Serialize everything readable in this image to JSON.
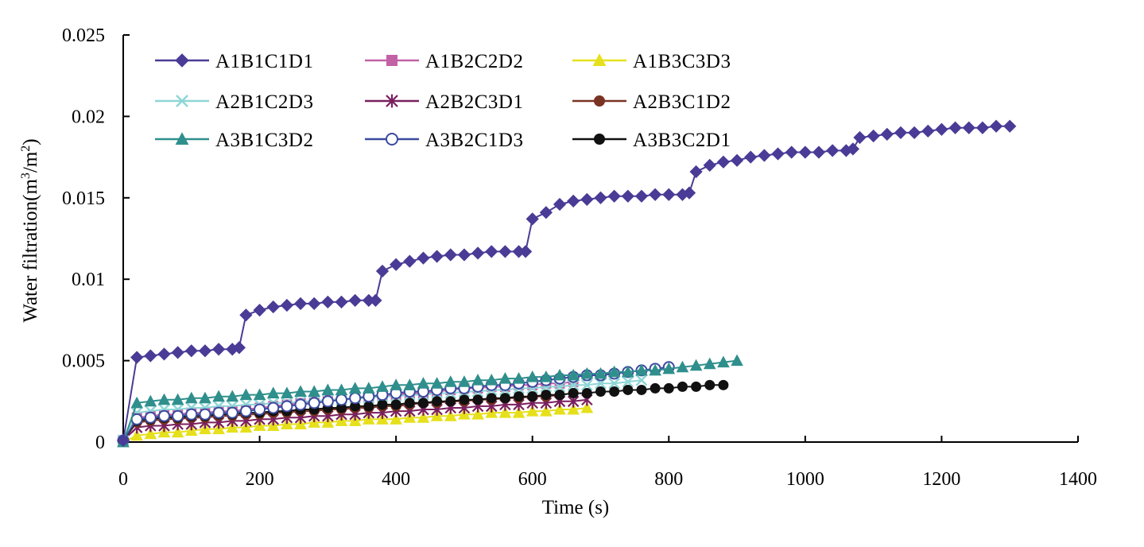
{
  "chart_data": {
    "type": "line",
    "title": "",
    "xlabel": "Time (s)",
    "ylabel_text": "Water filtration(m",
    "ylabel_sup1": "3",
    "ylabel_mid": "/m",
    "ylabel_sup2": "2",
    "ylabel_end": ")",
    "xlim": [
      0,
      1400
    ],
    "ylim": [
      0,
      0.025
    ],
    "xticks": [
      0,
      200,
      400,
      600,
      800,
      1000,
      1200,
      1400
    ],
    "xtick_labels": [
      "0",
      "200",
      "400",
      "600",
      "800",
      "1000",
      "1200",
      "1400"
    ],
    "yticks": [
      0,
      0.005,
      0.01,
      0.015,
      0.02,
      0.025
    ],
    "ytick_labels": [
      "0",
      "0.005",
      "0.01",
      "0.015",
      "0.02",
      "0.025"
    ],
    "grid": false,
    "legend_position": "top-left",
    "series": [
      {
        "name": "A1B1C1D1",
        "color": "#4a3b96",
        "marker": "diamond",
        "x": [
          0,
          20,
          40,
          60,
          80,
          100,
          120,
          140,
          160,
          170,
          180,
          200,
          220,
          240,
          260,
          280,
          300,
          320,
          340,
          360,
          370,
          380,
          400,
          420,
          440,
          460,
          480,
          500,
          520,
          540,
          560,
          580,
          590,
          600,
          620,
          640,
          660,
          680,
          700,
          720,
          740,
          760,
          780,
          800,
          820,
          830,
          840,
          860,
          880,
          900,
          920,
          940,
          960,
          980,
          1000,
          1020,
          1040,
          1060,
          1070,
          1080,
          1100,
          1120,
          1140,
          1160,
          1180,
          1200,
          1220,
          1240,
          1260,
          1280,
          1300
        ],
        "values": [
          0.0001,
          0.0052,
          0.0053,
          0.0054,
          0.0055,
          0.0056,
          0.0056,
          0.0057,
          0.0057,
          0.0058,
          0.0078,
          0.0081,
          0.0083,
          0.0084,
          0.0085,
          0.0085,
          0.0086,
          0.0086,
          0.0087,
          0.0087,
          0.0087,
          0.0105,
          0.0109,
          0.0111,
          0.0113,
          0.0114,
          0.0115,
          0.0115,
          0.0116,
          0.0117,
          0.0117,
          0.0117,
          0.0117,
          0.0137,
          0.0141,
          0.0146,
          0.0148,
          0.0149,
          0.015,
          0.0151,
          0.0151,
          0.0151,
          0.0152,
          0.0152,
          0.0152,
          0.0153,
          0.0166,
          0.017,
          0.0172,
          0.0173,
          0.0175,
          0.0176,
          0.0177,
          0.0178,
          0.0178,
          0.0178,
          0.0179,
          0.0179,
          0.018,
          0.0187,
          0.0188,
          0.0189,
          0.019,
          0.019,
          0.0191,
          0.0192,
          0.0193,
          0.0193,
          0.0193,
          0.0194,
          0.0194
        ]
      },
      {
        "name": "A1B2C2D2",
        "color": "#c261a6",
        "marker": "square",
        "x": [
          0,
          20,
          40,
          60,
          80,
          100,
          120,
          140,
          160,
          180,
          200,
          220,
          240,
          260,
          280,
          300,
          320,
          340,
          360,
          380,
          400,
          420,
          440,
          460,
          480,
          500,
          520,
          540,
          560,
          580,
          600,
          620,
          640,
          660
        ],
        "values": [
          0.0001,
          0.0015,
          0.0016,
          0.0017,
          0.0017,
          0.0018,
          0.0018,
          0.0019,
          0.0019,
          0.002,
          0.0021,
          0.0022,
          0.0023,
          0.0024,
          0.0025,
          0.0026,
          0.0026,
          0.0027,
          0.0028,
          0.0028,
          0.0029,
          0.003,
          0.003,
          0.0031,
          0.0032,
          0.0033,
          0.0033,
          0.0034,
          0.0034,
          0.0035,
          0.0035,
          0.0036,
          0.0036,
          0.0037
        ]
      },
      {
        "name": "A1B3C3D3",
        "color": "#e6e01c",
        "marker": "triangle",
        "x": [
          0,
          20,
          40,
          60,
          80,
          100,
          120,
          140,
          160,
          180,
          200,
          220,
          240,
          260,
          280,
          300,
          320,
          340,
          360,
          380,
          400,
          420,
          440,
          460,
          480,
          500,
          520,
          540,
          560,
          580,
          600,
          620,
          640,
          660,
          680
        ],
        "values": [
          0,
          0.0004,
          0.0005,
          0.0006,
          0.0006,
          0.0007,
          0.0008,
          0.0008,
          0.0009,
          0.0009,
          0.001,
          0.001,
          0.0011,
          0.0011,
          0.0012,
          0.0012,
          0.0013,
          0.0013,
          0.0014,
          0.0014,
          0.0014,
          0.0015,
          0.0015,
          0.0016,
          0.0016,
          0.0017,
          0.0017,
          0.0018,
          0.0018,
          0.0018,
          0.0019,
          0.0019,
          0.002,
          0.002,
          0.0021
        ]
      },
      {
        "name": "A2B1C2D3",
        "color": "#8fd6d6",
        "marker": "x",
        "x": [
          0,
          20,
          40,
          60,
          80,
          100,
          120,
          140,
          160,
          180,
          200,
          220,
          240,
          260,
          280,
          300,
          320,
          340,
          360,
          380,
          400,
          420,
          440,
          460,
          480,
          500,
          520,
          540,
          560,
          580,
          600,
          620,
          640,
          660,
          680,
          700,
          720,
          740,
          760
        ],
        "values": [
          0.0001,
          0.0018,
          0.0019,
          0.002,
          0.002,
          0.0021,
          0.0021,
          0.0022,
          0.0022,
          0.0023,
          0.0023,
          0.0024,
          0.0024,
          0.0025,
          0.0025,
          0.0026,
          0.0026,
          0.0027,
          0.0027,
          0.0028,
          0.0028,
          0.0029,
          0.0029,
          0.003,
          0.003,
          0.0031,
          0.0031,
          0.0032,
          0.0032,
          0.0033,
          0.0033,
          0.0034,
          0.0034,
          0.0035,
          0.0035,
          0.0036,
          0.0036,
          0.0037,
          0.0038
        ]
      },
      {
        "name": "A2B2C3D1",
        "color": "#7a1f5e",
        "marker": "star",
        "x": [
          0,
          20,
          40,
          60,
          80,
          100,
          120,
          140,
          160,
          180,
          200,
          220,
          240,
          260,
          280,
          300,
          320,
          340,
          360,
          380,
          400,
          420,
          440,
          460,
          480,
          500,
          520,
          540,
          560,
          580,
          600,
          620,
          640,
          660,
          680
        ],
        "values": [
          0.0001,
          0.0009,
          0.001,
          0.001,
          0.0011,
          0.0011,
          0.0012,
          0.0012,
          0.0013,
          0.0013,
          0.0014,
          0.0014,
          0.0015,
          0.0015,
          0.0016,
          0.0016,
          0.0017,
          0.0017,
          0.0018,
          0.0018,
          0.0019,
          0.0019,
          0.002,
          0.002,
          0.0021,
          0.0021,
          0.0022,
          0.0022,
          0.0023,
          0.0023,
          0.0024,
          0.0024,
          0.0025,
          0.0025,
          0.0026
        ]
      },
      {
        "name": "A2B3C1D2",
        "color": "#7a3322",
        "marker": "circle",
        "x": [
          0,
          20,
          40,
          60,
          80,
          100,
          120,
          140,
          160,
          180,
          200,
          220,
          240,
          260,
          280,
          300,
          320,
          340,
          360,
          380,
          400,
          420,
          440,
          460,
          480,
          500,
          520,
          540,
          560,
          580,
          600,
          620,
          640,
          660
        ],
        "values": [
          0.0001,
          0.0012,
          0.0013,
          0.0014,
          0.0014,
          0.0015,
          0.0015,
          0.0016,
          0.0016,
          0.0017,
          0.0017,
          0.0018,
          0.0018,
          0.0019,
          0.0019,
          0.002,
          0.002,
          0.0021,
          0.0021,
          0.0022,
          0.0022,
          0.0023,
          0.0024,
          0.0024,
          0.0025,
          0.0025,
          0.0026,
          0.0026,
          0.0027,
          0.0027,
          0.0028,
          0.0028,
          0.0029,
          0.003
        ]
      },
      {
        "name": "A3B1C3D2",
        "color": "#2f8f8c",
        "marker": "triangle",
        "x": [
          0,
          20,
          40,
          60,
          80,
          100,
          120,
          140,
          160,
          180,
          200,
          220,
          240,
          260,
          280,
          300,
          320,
          340,
          360,
          380,
          400,
          420,
          440,
          460,
          480,
          500,
          520,
          540,
          560,
          580,
          600,
          620,
          640,
          660,
          680,
          700,
          720,
          740,
          760,
          780,
          800,
          820,
          840,
          860,
          880,
          900
        ],
        "values": [
          0,
          0.0024,
          0.0025,
          0.0026,
          0.0026,
          0.0027,
          0.0027,
          0.0028,
          0.0028,
          0.0029,
          0.0029,
          0.003,
          0.003,
          0.0031,
          0.0031,
          0.0032,
          0.0032,
          0.0033,
          0.0033,
          0.0034,
          0.0035,
          0.0035,
          0.0036,
          0.0036,
          0.0037,
          0.0037,
          0.0038,
          0.0038,
          0.0039,
          0.0039,
          0.004,
          0.004,
          0.0041,
          0.0041,
          0.0042,
          0.0042,
          0.0043,
          0.0043,
          0.0044,
          0.0044,
          0.0045,
          0.0046,
          0.0047,
          0.0048,
          0.0049,
          0.005
        ]
      },
      {
        "name": "A3B2C1D3",
        "color": "#3b4a9e",
        "marker": "open-circle",
        "x": [
          0,
          20,
          40,
          60,
          80,
          100,
          120,
          140,
          160,
          180,
          200,
          220,
          240,
          260,
          280,
          300,
          320,
          340,
          360,
          380,
          400,
          420,
          440,
          460,
          480,
          500,
          520,
          540,
          560,
          580,
          600,
          620,
          640,
          660,
          680,
          700,
          720,
          740,
          760,
          780,
          800
        ],
        "values": [
          0.0001,
          0.0014,
          0.0015,
          0.0016,
          0.0016,
          0.0017,
          0.0017,
          0.0018,
          0.0018,
          0.0019,
          0.002,
          0.0021,
          0.0022,
          0.0023,
          0.0024,
          0.0025,
          0.0026,
          0.0027,
          0.0028,
          0.0029,
          0.003,
          0.0031,
          0.0031,
          0.0032,
          0.0033,
          0.0033,
          0.0034,
          0.0035,
          0.0035,
          0.0036,
          0.0037,
          0.0038,
          0.0039,
          0.004,
          0.0041,
          0.0041,
          0.0042,
          0.0043,
          0.0044,
          0.0045,
          0.0046
        ]
      },
      {
        "name": "A3B3C2D1",
        "color": "#111111",
        "marker": "circle",
        "x": [
          0,
          20,
          40,
          60,
          80,
          100,
          120,
          140,
          160,
          180,
          200,
          220,
          240,
          260,
          280,
          300,
          320,
          340,
          360,
          380,
          400,
          420,
          440,
          460,
          480,
          500,
          520,
          540,
          560,
          580,
          600,
          620,
          640,
          660,
          680,
          700,
          720,
          740,
          760,
          780,
          800,
          820,
          840,
          860,
          880
        ],
        "values": [
          0.0001,
          0.0013,
          0.0014,
          0.0015,
          0.0015,
          0.0016,
          0.0016,
          0.0017,
          0.0017,
          0.0018,
          0.0018,
          0.0019,
          0.0019,
          0.002,
          0.002,
          0.0021,
          0.0021,
          0.0022,
          0.0022,
          0.0023,
          0.0023,
          0.0024,
          0.0024,
          0.0025,
          0.0025,
          0.0026,
          0.0026,
          0.0027,
          0.0027,
          0.0028,
          0.0028,
          0.0029,
          0.0029,
          0.003,
          0.003,
          0.0031,
          0.0031,
          0.0032,
          0.0032,
          0.0033,
          0.0033,
          0.0034,
          0.0034,
          0.0035,
          0.0035
        ]
      }
    ]
  }
}
